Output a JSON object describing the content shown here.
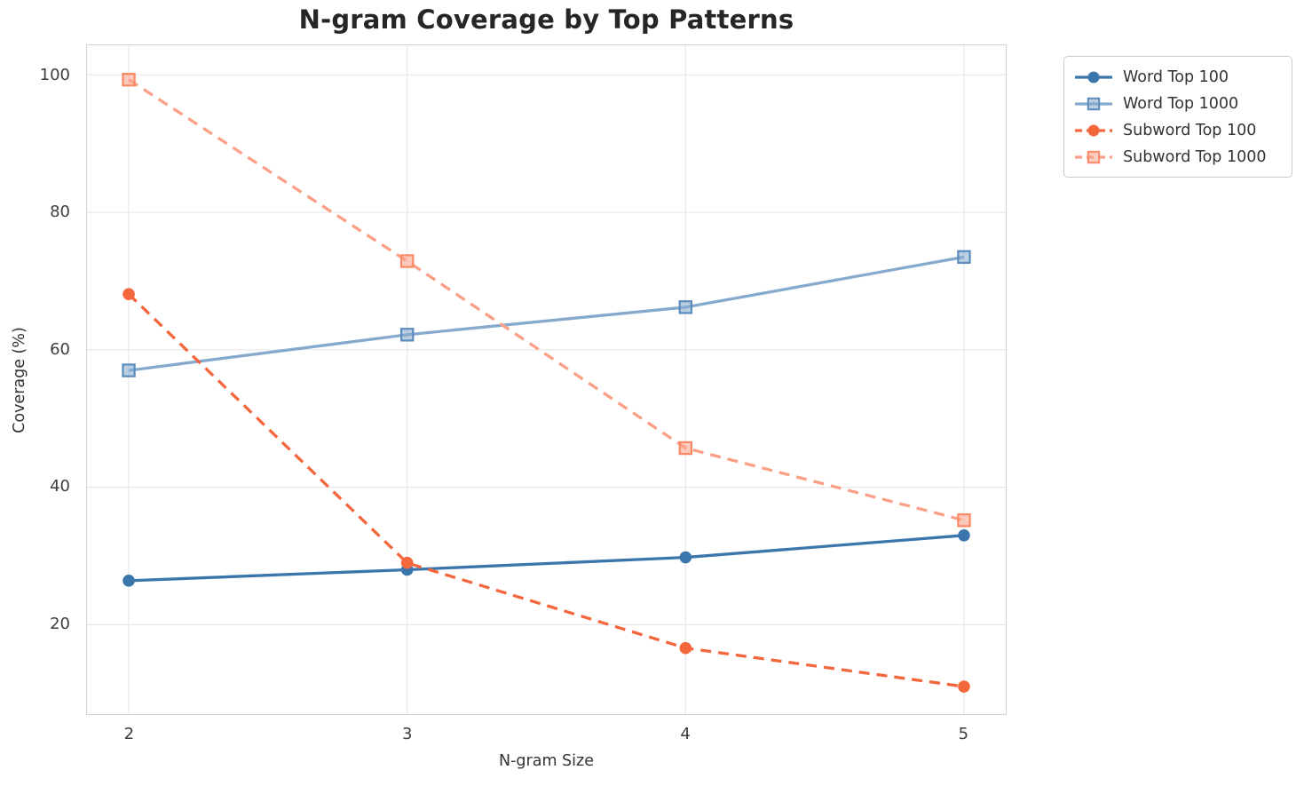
{
  "page": {
    "background": "#ffffff",
    "grid_color": "#e7e7e7",
    "spine_color": "#d4d4d4",
    "tick_color": "#3d3d3d",
    "text_color": "#333333",
    "title_color": "#262626"
  },
  "chart_data": {
    "type": "line",
    "title": "N-gram Coverage by Top Patterns",
    "xlabel": "N-gram Size",
    "ylabel": "Coverage (%)",
    "x": [
      2,
      3,
      4,
      5
    ],
    "x_ticks": [
      2,
      3,
      4,
      5
    ],
    "y_ticks": [
      20,
      40,
      60,
      80,
      100
    ],
    "xlim": [
      1.85,
      5.15
    ],
    "ylim": [
      7,
      104.3
    ],
    "grid": true,
    "legend_position": "outside-upper-right",
    "series": [
      {
        "name": "Word Top 100",
        "color": "#3a76ab",
        "marker": "circle",
        "marker_edge": "#3a76ab",
        "line_style": "solid",
        "values": [
          26.4,
          28.0,
          29.8,
          33.0
        ]
      },
      {
        "name": "Word Top 1000",
        "color": "#85aacd",
        "marker": "square",
        "marker_edge": "#5b8cbe",
        "line_style": "solid",
        "values": [
          57.0,
          62.2,
          66.2,
          73.5
        ]
      },
      {
        "name": "Subword Top 100",
        "color": "#f4663c",
        "marker": "circle",
        "marker_edge": "#f4663c",
        "line_style": "dashed",
        "values": [
          68.1,
          29.0,
          16.6,
          11.0
        ]
      },
      {
        "name": "Subword Top 1000",
        "color": "#fba086",
        "marker": "square",
        "marker_edge": "#fa8a66",
        "line_style": "dashed",
        "values": [
          99.3,
          72.9,
          45.7,
          35.2
        ]
      }
    ]
  }
}
